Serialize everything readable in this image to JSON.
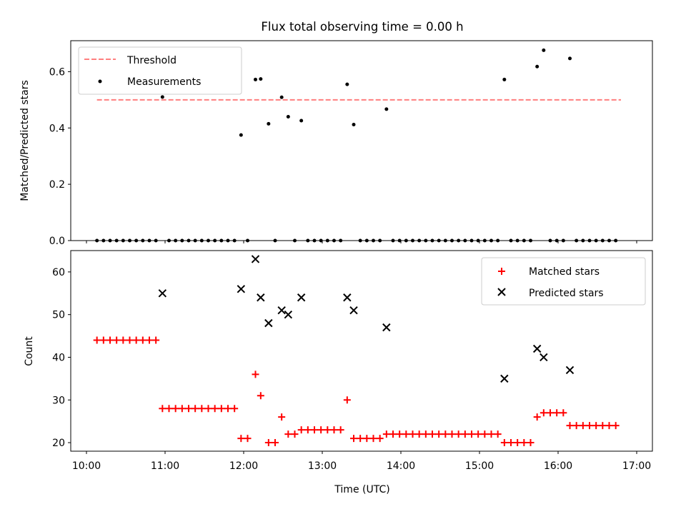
{
  "title": "Flux total observing time = 0.00 h",
  "colors": {
    "threshold": "#ff7f7f",
    "measurement": "#000000",
    "matched": "#ff0000",
    "predicted": "#000000"
  },
  "chart_data": [
    {
      "type": "scatter",
      "panel": "top",
      "ylabel": "Matched/Predicted stars",
      "xlim": [
        "10:00",
        "17:00"
      ],
      "ylim": [
        0,
        0.71
      ],
      "yticks": [
        "0.0",
        "0.2",
        "0.4",
        "0.6"
      ],
      "ytick_values": [
        0,
        0.2,
        0.4,
        0.6
      ],
      "legend": {
        "position": "top-left",
        "entries": [
          "Threshold",
          "Measurements"
        ]
      },
      "threshold": {
        "name": "Threshold",
        "value": 0.5,
        "x_start": "10:08",
        "x_end": "16:48"
      },
      "series": [
        {
          "name": "Measurements",
          "points": [
            [
              "10:08",
              0
            ],
            [
              "10:13",
              0
            ],
            [
              "10:18",
              0
            ],
            [
              "10:23",
              0
            ],
            [
              "10:28",
              0
            ],
            [
              "10:33",
              0
            ],
            [
              "10:38",
              0
            ],
            [
              "10:43",
              0
            ],
            [
              "10:48",
              0
            ],
            [
              "10:53",
              0
            ],
            [
              "10:58",
              0.51
            ],
            [
              "11:03",
              0
            ],
            [
              "11:08",
              0
            ],
            [
              "11:13",
              0
            ],
            [
              "11:18",
              0
            ],
            [
              "11:23",
              0
            ],
            [
              "11:28",
              0
            ],
            [
              "11:33",
              0
            ],
            [
              "11:38",
              0
            ],
            [
              "11:43",
              0
            ],
            [
              "11:48",
              0
            ],
            [
              "11:53",
              0
            ],
            [
              "11:58",
              0.375
            ],
            [
              "12:03",
              0
            ],
            [
              "12:09",
              0.572
            ],
            [
              "12:13",
              0.574
            ],
            [
              "12:19",
              0.415
            ],
            [
              "12:24",
              0
            ],
            [
              "12:29",
              0.509
            ],
            [
              "12:34",
              0.44
            ],
            [
              "12:39",
              0
            ],
            [
              "12:44",
              0.426
            ],
            [
              "12:49",
              0
            ],
            [
              "12:54",
              0
            ],
            [
              "12:59",
              0
            ],
            [
              "13:04",
              0
            ],
            [
              "13:09",
              0
            ],
            [
              "13:14",
              0
            ],
            [
              "13:19",
              0.555
            ],
            [
              "13:24",
              0.412
            ],
            [
              "13:29",
              0
            ],
            [
              "13:34",
              0
            ],
            [
              "13:39",
              0
            ],
            [
              "13:44",
              0
            ],
            [
              "13:49",
              0.467
            ],
            [
              "13:54",
              0
            ],
            [
              "13:59",
              0
            ],
            [
              "14:04",
              0
            ],
            [
              "14:09",
              0
            ],
            [
              "14:14",
              0
            ],
            [
              "14:19",
              0
            ],
            [
              "14:24",
              0
            ],
            [
              "14:29",
              0
            ],
            [
              "14:34",
              0
            ],
            [
              "14:39",
              0
            ],
            [
              "14:44",
              0
            ],
            [
              "14:49",
              0
            ],
            [
              "14:54",
              0
            ],
            [
              "14:59",
              0
            ],
            [
              "15:04",
              0
            ],
            [
              "15:09",
              0
            ],
            [
              "15:14",
              0
            ],
            [
              "15:19",
              0.572
            ],
            [
              "15:24",
              0
            ],
            [
              "15:29",
              0
            ],
            [
              "15:34",
              0
            ],
            [
              "15:39",
              0
            ],
            [
              "15:44",
              0.618
            ],
            [
              "15:49",
              0.676
            ],
            [
              "15:54",
              0
            ],
            [
              "15:59",
              0
            ],
            [
              "16:04",
              0
            ],
            [
              "16:09",
              0.647
            ],
            [
              "16:14",
              0
            ],
            [
              "16:19",
              0
            ],
            [
              "16:24",
              0
            ],
            [
              "16:29",
              0
            ],
            [
              "16:34",
              0
            ],
            [
              "16:39",
              0
            ],
            [
              "16:44",
              0
            ]
          ]
        }
      ]
    },
    {
      "type": "scatter",
      "panel": "bottom",
      "xlabel": "Time (UTC)",
      "ylabel": "Count",
      "xlim": [
        "10:00",
        "17:00"
      ],
      "xticks": [
        "10:00",
        "11:00",
        "12:00",
        "13:00",
        "14:00",
        "15:00",
        "16:00",
        "17:00"
      ],
      "ylim": [
        18,
        65
      ],
      "yticks": [
        "20",
        "30",
        "40",
        "50",
        "60"
      ],
      "ytick_values": [
        20,
        30,
        40,
        50,
        60
      ],
      "legend": {
        "position": "top-right",
        "entries": [
          "Matched stars",
          "Predicted stars"
        ]
      },
      "series": [
        {
          "name": "Matched stars",
          "marker": "plus",
          "points": [
            [
              "10:08",
              44
            ],
            [
              "10:13",
              44
            ],
            [
              "10:18",
              44
            ],
            [
              "10:23",
              44
            ],
            [
              "10:28",
              44
            ],
            [
              "10:33",
              44
            ],
            [
              "10:38",
              44
            ],
            [
              "10:43",
              44
            ],
            [
              "10:48",
              44
            ],
            [
              "10:53",
              44
            ],
            [
              "10:58",
              28
            ],
            [
              "11:03",
              28
            ],
            [
              "11:08",
              28
            ],
            [
              "11:13",
              28
            ],
            [
              "11:18",
              28
            ],
            [
              "11:23",
              28
            ],
            [
              "11:28",
              28
            ],
            [
              "11:33",
              28
            ],
            [
              "11:38",
              28
            ],
            [
              "11:43",
              28
            ],
            [
              "11:48",
              28
            ],
            [
              "11:53",
              28
            ],
            [
              "11:58",
              21
            ],
            [
              "12:03",
              21
            ],
            [
              "12:09",
              36
            ],
            [
              "12:13",
              31
            ],
            [
              "12:19",
              20
            ],
            [
              "12:24",
              20
            ],
            [
              "12:29",
              26
            ],
            [
              "12:34",
              22
            ],
            [
              "12:39",
              22
            ],
            [
              "12:44",
              23
            ],
            [
              "12:49",
              23
            ],
            [
              "12:54",
              23
            ],
            [
              "12:59",
              23
            ],
            [
              "13:04",
              23
            ],
            [
              "13:09",
              23
            ],
            [
              "13:14",
              23
            ],
            [
              "13:19",
              30
            ],
            [
              "13:24",
              21
            ],
            [
              "13:29",
              21
            ],
            [
              "13:34",
              21
            ],
            [
              "13:39",
              21
            ],
            [
              "13:44",
              21
            ],
            [
              "13:49",
              22
            ],
            [
              "13:54",
              22
            ],
            [
              "13:59",
              22
            ],
            [
              "14:04",
              22
            ],
            [
              "14:09",
              22
            ],
            [
              "14:14",
              22
            ],
            [
              "14:19",
              22
            ],
            [
              "14:24",
              22
            ],
            [
              "14:29",
              22
            ],
            [
              "14:34",
              22
            ],
            [
              "14:39",
              22
            ],
            [
              "14:44",
              22
            ],
            [
              "14:49",
              22
            ],
            [
              "14:54",
              22
            ],
            [
              "14:59",
              22
            ],
            [
              "15:04",
              22
            ],
            [
              "15:09",
              22
            ],
            [
              "15:14",
              22
            ],
            [
              "15:19",
              20
            ],
            [
              "15:24",
              20
            ],
            [
              "15:29",
              20
            ],
            [
              "15:34",
              20
            ],
            [
              "15:39",
              20
            ],
            [
              "15:44",
              26
            ],
            [
              "15:49",
              27
            ],
            [
              "15:54",
              27
            ],
            [
              "15:59",
              27
            ],
            [
              "16:04",
              27
            ],
            [
              "16:09",
              24
            ],
            [
              "16:14",
              24
            ],
            [
              "16:19",
              24
            ],
            [
              "16:24",
              24
            ],
            [
              "16:29",
              24
            ],
            [
              "16:34",
              24
            ],
            [
              "16:39",
              24
            ],
            [
              "16:44",
              24
            ]
          ]
        },
        {
          "name": "Predicted stars",
          "marker": "x",
          "points": [
            [
              "10:58",
              55
            ],
            [
              "11:58",
              56
            ],
            [
              "12:09",
              63
            ],
            [
              "12:13",
              54
            ],
            [
              "12:19",
              48
            ],
            [
              "12:29",
              51
            ],
            [
              "12:34",
              50
            ],
            [
              "12:44",
              54
            ],
            [
              "13:19",
              54
            ],
            [
              "13:24",
              51
            ],
            [
              "13:49",
              47
            ],
            [
              "15:19",
              35
            ],
            [
              "15:44",
              42
            ],
            [
              "15:49",
              40
            ],
            [
              "16:09",
              37
            ]
          ]
        }
      ]
    }
  ]
}
